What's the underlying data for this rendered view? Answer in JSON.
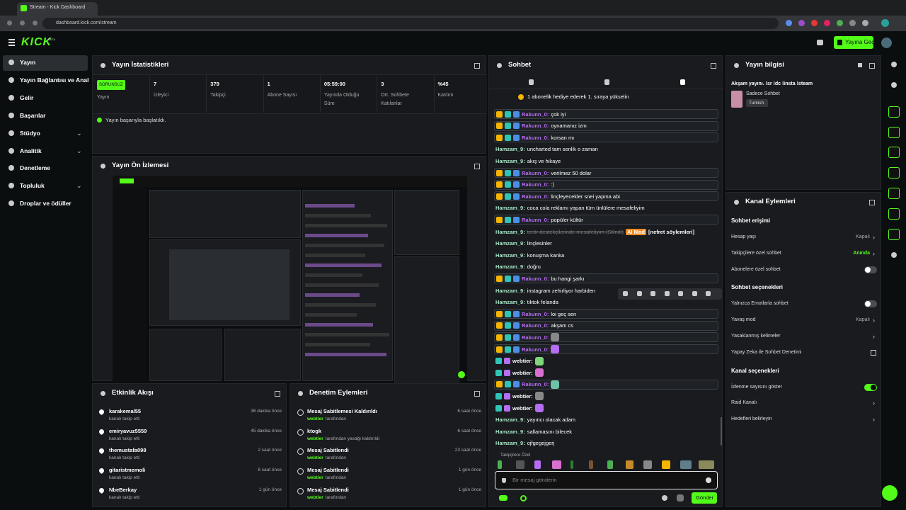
{
  "browser": {
    "tab_title": "Stream - Kick Dashboard",
    "url": "dashboard.kick.com/stream"
  },
  "header": {
    "logo": "KICK",
    "beta": "BETA",
    "go_live": "Yayına Geç"
  },
  "sidebar": {
    "items": [
      {
        "label": "Yayın"
      },
      {
        "label": "Yayın Bağlantısı ve Anahta"
      },
      {
        "label": "Gelir"
      },
      {
        "label": "Başarılar"
      },
      {
        "label": "Stüdyo",
        "expandable": true
      },
      {
        "label": "Analitik",
        "expandable": true
      },
      {
        "label": "Denetleme"
      },
      {
        "label": "Topluluk",
        "expandable": true
      },
      {
        "label": "Droplar ve ödüller"
      }
    ]
  },
  "stats": {
    "title": "Yayın İstatistikleri",
    "status": "SORUNSUZ",
    "status_label": "Yayın",
    "items": [
      {
        "value": "7",
        "label": "İzleyici"
      },
      {
        "value": "379",
        "label": "Takipçi"
      },
      {
        "value": "1",
        "label": "Abone Sayısı"
      },
      {
        "value": "05:59:00",
        "label": "Yayında Olduğu Süre"
      },
      {
        "value": "3",
        "label": "Ort. Sohbete Katılanlar"
      },
      {
        "value": "%45",
        "label": "Katılım"
      }
    ],
    "success": "Yayın başarıyla başlatıldı."
  },
  "preview": {
    "title": "Yayın Ön İzlemesi"
  },
  "activity": {
    "title": "Etkinlik Akışı",
    "items": [
      {
        "user": "karakemal55",
        "action": "kanalı takip etti",
        "time": "36 dakika önce"
      },
      {
        "user": "emiryavuz5559",
        "action": "kanalı takip etti",
        "time": "45 dakika önce"
      },
      {
        "user": "themustafa098",
        "action": "kanalı takip etti",
        "time": "2 saat önce"
      },
      {
        "user": "gitaristmemoli",
        "action": "kanalı takip etti",
        "time": "6 saat önce"
      },
      {
        "user": "NbeBerkay",
        "action": "kanalı takip etti",
        "time": "1 gün önce"
      }
    ]
  },
  "moderation": {
    "title": "Denetim Eylemleri",
    "items": [
      {
        "action": "Mesaj Sabitlemesi Kaldırıldı",
        "by": "webtier",
        "note": "tarafından",
        "time": "6 saat önce"
      },
      {
        "action": "ktogk",
        "by": "webtier",
        "note": "tarafından yasağı kaldırıldı",
        "time": "6 saat önce"
      },
      {
        "action": "Mesaj Sabitlendi",
        "by": "webtier",
        "note": "tarafından",
        "time": "23 saat önce"
      },
      {
        "action": "Mesaj Sabitlendi",
        "by": "webtier",
        "note": "tarafından",
        "time": "1 gün önce"
      },
      {
        "action": "Mesaj Sabitlendi",
        "by": "webtier",
        "note": "tarafından",
        "time": "1 gün önce"
      }
    ]
  },
  "chat": {
    "title": "Sohbet",
    "banner": "1 abonelik hediye ederek 1. sıraya yükselin",
    "messages": [
      {
        "user": "Rakunn_0:",
        "text": "çok iyi",
        "highlighted": true,
        "color": "#b56df2"
      },
      {
        "user": "Rakunn_0:",
        "text": "oynamanız izm",
        "highlighted": true,
        "color": "#b56df2"
      },
      {
        "user": "Rakunn_0:",
        "text": "korsan mı",
        "highlighted": true,
        "color": "#b56df2"
      },
      {
        "user": "Hamzam_9:",
        "text": "uncharted tam senlik o zaman",
        "color": "#a8e6c8"
      },
      {
        "user": "Hamzam_9:",
        "text": "akış ve hikaye",
        "color": "#a8e6c8"
      },
      {
        "user": "Rakunn_0:",
        "text": "verilmez 50 dolar",
        "highlighted": true,
        "color": "#b56df2"
      },
      {
        "user": "Rakunn_0:",
        "text": ":)",
        "highlighted": true,
        "color": "#b56df2"
      },
      {
        "user": "Rakunn_0:",
        "text": "linçleyecekler snei yapma abi",
        "highlighted": true,
        "color": "#b56df2"
      },
      {
        "user": "Hamzam_9:",
        "text": "coca cola reklamı yapan tüm ünlülere mesafeliyim",
        "color": "#a8e6c8"
      },
      {
        "user": "Rakunn_0:",
        "text": "popüler kültür",
        "highlighted": true,
        "color": "#b56df2"
      },
      {
        "user": "Hamzam_9:",
        "deleted": "terör destekçilerinde mesafeliyim (Silindi)",
        "tag": "AI Mod",
        "reason": "[nefret söylemleri]",
        "color": "#a8e6c8"
      },
      {
        "user": "Hamzam_9:",
        "text": "linçlesinler",
        "color": "#a8e6c8"
      },
      {
        "user": "Hamzam_9:",
        "text": "konuşma kanka",
        "color": "#a8e6c8"
      },
      {
        "user": "Hamzam_9:",
        "text": "doğru",
        "color": "#a8e6c8"
      },
      {
        "user": "Rakunn_0:",
        "text": "bu hangi şarkı",
        "highlighted": true,
        "color": "#b56df2"
      },
      {
        "user": "Hamzam_9:",
        "text": "instagram zehirliyor harbiden",
        "color": "#a8e6c8"
      },
      {
        "user": "Hamzam_9:",
        "text": "tiktok felanda",
        "color": "#a8e6c8"
      },
      {
        "user": "Rakunn_0:",
        "text": "loi geç sen",
        "highlighted": true,
        "color": "#b56df2"
      },
      {
        "user": "Rakunn_0:",
        "text": "akşam cs",
        "highlighted": true,
        "color": "#b56df2"
      },
      {
        "user": "Rakunn_0:",
        "emote": true,
        "highlighted": true,
        "color": "#b56df2"
      },
      {
        "user": "Rakunn_0:",
        "emote": true,
        "highlighted": true,
        "color": "#b56df2"
      },
      {
        "user": "webtier:",
        "emote": true,
        "color": "#ffffff"
      },
      {
        "user": "webtier:",
        "emote": true,
        "color": "#ffffff"
      },
      {
        "user": "Rakunn_0:",
        "emote": true,
        "highlighted": true,
        "color": "#b56df2"
      },
      {
        "user": "webtier:",
        "emote": true,
        "color": "#ffffff"
      },
      {
        "user": "webtier:",
        "emote": true,
        "color": "#ffffff"
      },
      {
        "user": "Hamzam_9:",
        "text": "yayıncı olacak adam",
        "color": "#a8e6c8"
      },
      {
        "user": "Hamzam_9:",
        "text": "sallamasını bilecek",
        "color": "#a8e6c8"
      },
      {
        "user": "Hamzam_9:",
        "text": "ojfgegejgerj",
        "color": "#a8e6c8"
      }
    ],
    "followers_label": "Takipçilere Özel",
    "placeholder": "Bir mesaj gönderin",
    "send": "Gönder"
  },
  "stream_info": {
    "title": "Yayın bilgisi",
    "stream_title": "Akşam yayını. !sr !dc !insta !steam",
    "category": "Sadece Sohbet",
    "tag": "Turkish"
  },
  "channel_actions": {
    "title": "Kanal Eylemleri",
    "sections": [
      {
        "heading": "Sohbet erişimi",
        "rows": [
          {
            "label": "Hesap yaşı",
            "value": "Kapalı"
          },
          {
            "label": "Takipçilere özel sohbet",
            "value": "Anında",
            "value_color": "#53fc18"
          },
          {
            "label": "Abonelere özel sohbet",
            "toggle": false
          }
        ]
      },
      {
        "heading": "Sohbet seçenekleri",
        "rows": [
          {
            "label": "Yalnızca Emotlarla sohbet",
            "toggle": false
          },
          {
            "label": "Yavaş mod",
            "value": "Kapalı"
          },
          {
            "label": "Yasaklanmış kelimeler"
          },
          {
            "label": "Yapay Zeka ile Sohbet Denetimi",
            "external": true
          }
        ]
      },
      {
        "heading": "Kanal seçenekleri",
        "rows": [
          {
            "label": "İzlenme sayısını göster",
            "toggle": true
          },
          {
            "label": "Raid Kanalı"
          },
          {
            "label": "Hedefleri belirleyin"
          }
        ]
      }
    ]
  }
}
